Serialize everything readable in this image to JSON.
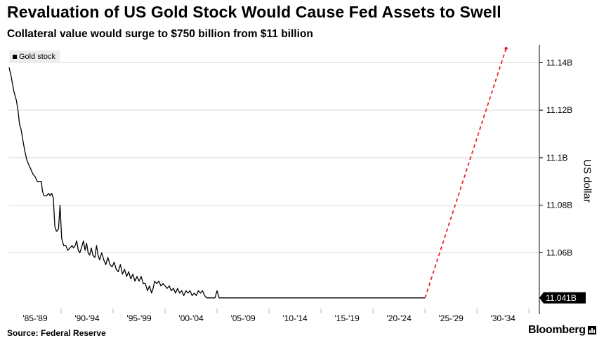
{
  "header": {
    "title": "Revaluation of US Gold Stock Would Cause Fed Assets to Swell",
    "subtitle": "Collateral value would surge to $750 billion from $11 billion"
  },
  "footer": {
    "source": "Source: Federal Reserve",
    "logo": "Bloomberg"
  },
  "chart_data": {
    "type": "line",
    "ylabel": "US dollar",
    "legend": {
      "position": "top-left",
      "entries": [
        "Gold stock"
      ]
    },
    "grid": "horizontal",
    "y_axis_side": "right",
    "ylim": [
      11.0365,
      11.1475
    ],
    "y_ticks": [
      11.06,
      11.08,
      11.1,
      11.12,
      11.14
    ],
    "y_tick_labels": [
      "11.06B",
      "11.08B",
      "11.1B",
      "11.12B",
      "11.14B"
    ],
    "last_value_label": "11.041B",
    "last_value": 11.041,
    "xlim": [
      1985,
      2036
    ],
    "x_ticks": [
      1987.5,
      1992.5,
      1997.5,
      2002.5,
      2007.5,
      2012.5,
      2017.5,
      2022.5,
      2027.5,
      2032.5
    ],
    "x_tick_labels": [
      "'85-'89",
      "'90-'94",
      "'95-'99",
      "'00-'04",
      "'05-'09",
      "'10-'14",
      "'15-'19",
      "'20-'24",
      "'25-'29",
      "'30-'34"
    ],
    "series": [
      {
        "name": "Gold stock",
        "color": "#000000",
        "style": "solid",
        "points": [
          [
            1985.0,
            11.138
          ],
          [
            1985.2,
            11.134
          ],
          [
            1985.45,
            11.128
          ],
          [
            1985.7,
            11.124
          ],
          [
            1985.85,
            11.12
          ],
          [
            1986.0,
            11.114
          ],
          [
            1986.15,
            11.112
          ],
          [
            1986.3,
            11.108
          ],
          [
            1986.5,
            11.103
          ],
          [
            1986.7,
            11.099
          ],
          [
            1986.9,
            11.097
          ],
          [
            1987.1,
            11.095
          ],
          [
            1987.3,
            11.093
          ],
          [
            1987.5,
            11.092
          ],
          [
            1987.7,
            11.09
          ],
          [
            1987.9,
            11.09
          ],
          [
            1988.1,
            11.09
          ],
          [
            1988.2,
            11.086
          ],
          [
            1988.35,
            11.084
          ],
          [
            1988.6,
            11.084
          ],
          [
            1988.8,
            11.085
          ],
          [
            1988.95,
            11.084
          ],
          [
            1989.1,
            11.085
          ],
          [
            1989.25,
            11.083
          ],
          [
            1989.4,
            11.071
          ],
          [
            1989.55,
            11.069
          ],
          [
            1989.75,
            11.07
          ],
          [
            1989.9,
            11.08
          ],
          [
            1990.05,
            11.066
          ],
          [
            1990.25,
            11.063
          ],
          [
            1990.45,
            11.063
          ],
          [
            1990.65,
            11.061
          ],
          [
            1990.85,
            11.062
          ],
          [
            1991.05,
            11.063
          ],
          [
            1991.2,
            11.062
          ],
          [
            1991.35,
            11.063
          ],
          [
            1991.5,
            11.065
          ],
          [
            1991.65,
            11.061
          ],
          [
            1991.8,
            11.06
          ],
          [
            1991.95,
            11.062
          ],
          [
            1992.15,
            11.065
          ],
          [
            1992.3,
            11.061
          ],
          [
            1992.45,
            11.064
          ],
          [
            1992.6,
            11.06
          ],
          [
            1992.75,
            11.059
          ],
          [
            1992.9,
            11.062
          ],
          [
            1993.05,
            11.059
          ],
          [
            1993.25,
            11.058
          ],
          [
            1993.4,
            11.063
          ],
          [
            1993.55,
            11.059
          ],
          [
            1993.7,
            11.057
          ],
          [
            1993.9,
            11.06
          ],
          [
            1994.1,
            11.057
          ],
          [
            1994.3,
            11.055
          ],
          [
            1994.5,
            11.058
          ],
          [
            1994.7,
            11.055
          ],
          [
            1994.9,
            11.054
          ],
          [
            1995.1,
            11.056
          ],
          [
            1995.3,
            11.053
          ],
          [
            1995.5,
            11.052
          ],
          [
            1995.7,
            11.055
          ],
          [
            1995.9,
            11.051
          ],
          [
            1996.1,
            11.053
          ],
          [
            1996.3,
            11.05
          ],
          [
            1996.5,
            11.052
          ],
          [
            1996.7,
            11.049
          ],
          [
            1996.9,
            11.051
          ],
          [
            1997.1,
            11.048
          ],
          [
            1997.3,
            11.05
          ],
          [
            1997.5,
            11.048
          ],
          [
            1997.7,
            11.05
          ],
          [
            1997.9,
            11.047
          ],
          [
            1998.1,
            11.047
          ],
          [
            1998.3,
            11.044
          ],
          [
            1998.5,
            11.046
          ],
          [
            1998.7,
            11.043
          ],
          [
            1998.85,
            11.045
          ],
          [
            1999.0,
            11.048
          ],
          [
            1999.2,
            11.047
          ],
          [
            1999.4,
            11.048
          ],
          [
            1999.6,
            11.046
          ],
          [
            1999.8,
            11.047
          ],
          [
            2000.0,
            11.046
          ],
          [
            2000.2,
            11.045
          ],
          [
            2000.4,
            11.046
          ],
          [
            2000.6,
            11.044
          ],
          [
            2000.8,
            11.045
          ],
          [
            2001.0,
            11.043
          ],
          [
            2001.2,
            11.045
          ],
          [
            2001.4,
            11.043
          ],
          [
            2001.6,
            11.044
          ],
          [
            2001.8,
            11.042
          ],
          [
            2002.0,
            11.044
          ],
          [
            2002.2,
            11.043
          ],
          [
            2002.4,
            11.044
          ],
          [
            2002.6,
            11.042
          ],
          [
            2002.8,
            11.043
          ],
          [
            2003.0,
            11.042
          ],
          [
            2003.2,
            11.044
          ],
          [
            2003.4,
            11.043
          ],
          [
            2003.6,
            11.044
          ],
          [
            2003.8,
            11.042
          ],
          [
            2004.0,
            11.041
          ],
          [
            2004.3,
            11.041
          ],
          [
            2004.6,
            11.041
          ],
          [
            2004.8,
            11.041
          ],
          [
            2005.0,
            11.044
          ],
          [
            2005.2,
            11.041
          ],
          [
            2006.0,
            11.041
          ],
          [
            2010.0,
            11.041
          ],
          [
            2015.0,
            11.041
          ],
          [
            2020.0,
            11.041
          ],
          [
            2025.0,
            11.041
          ]
        ]
      },
      {
        "name": "",
        "color": "#e8262b",
        "style": "dashed",
        "points": [
          [
            2025.0,
            11.041
          ],
          [
            2032.8,
            11.146
          ]
        ]
      }
    ]
  }
}
